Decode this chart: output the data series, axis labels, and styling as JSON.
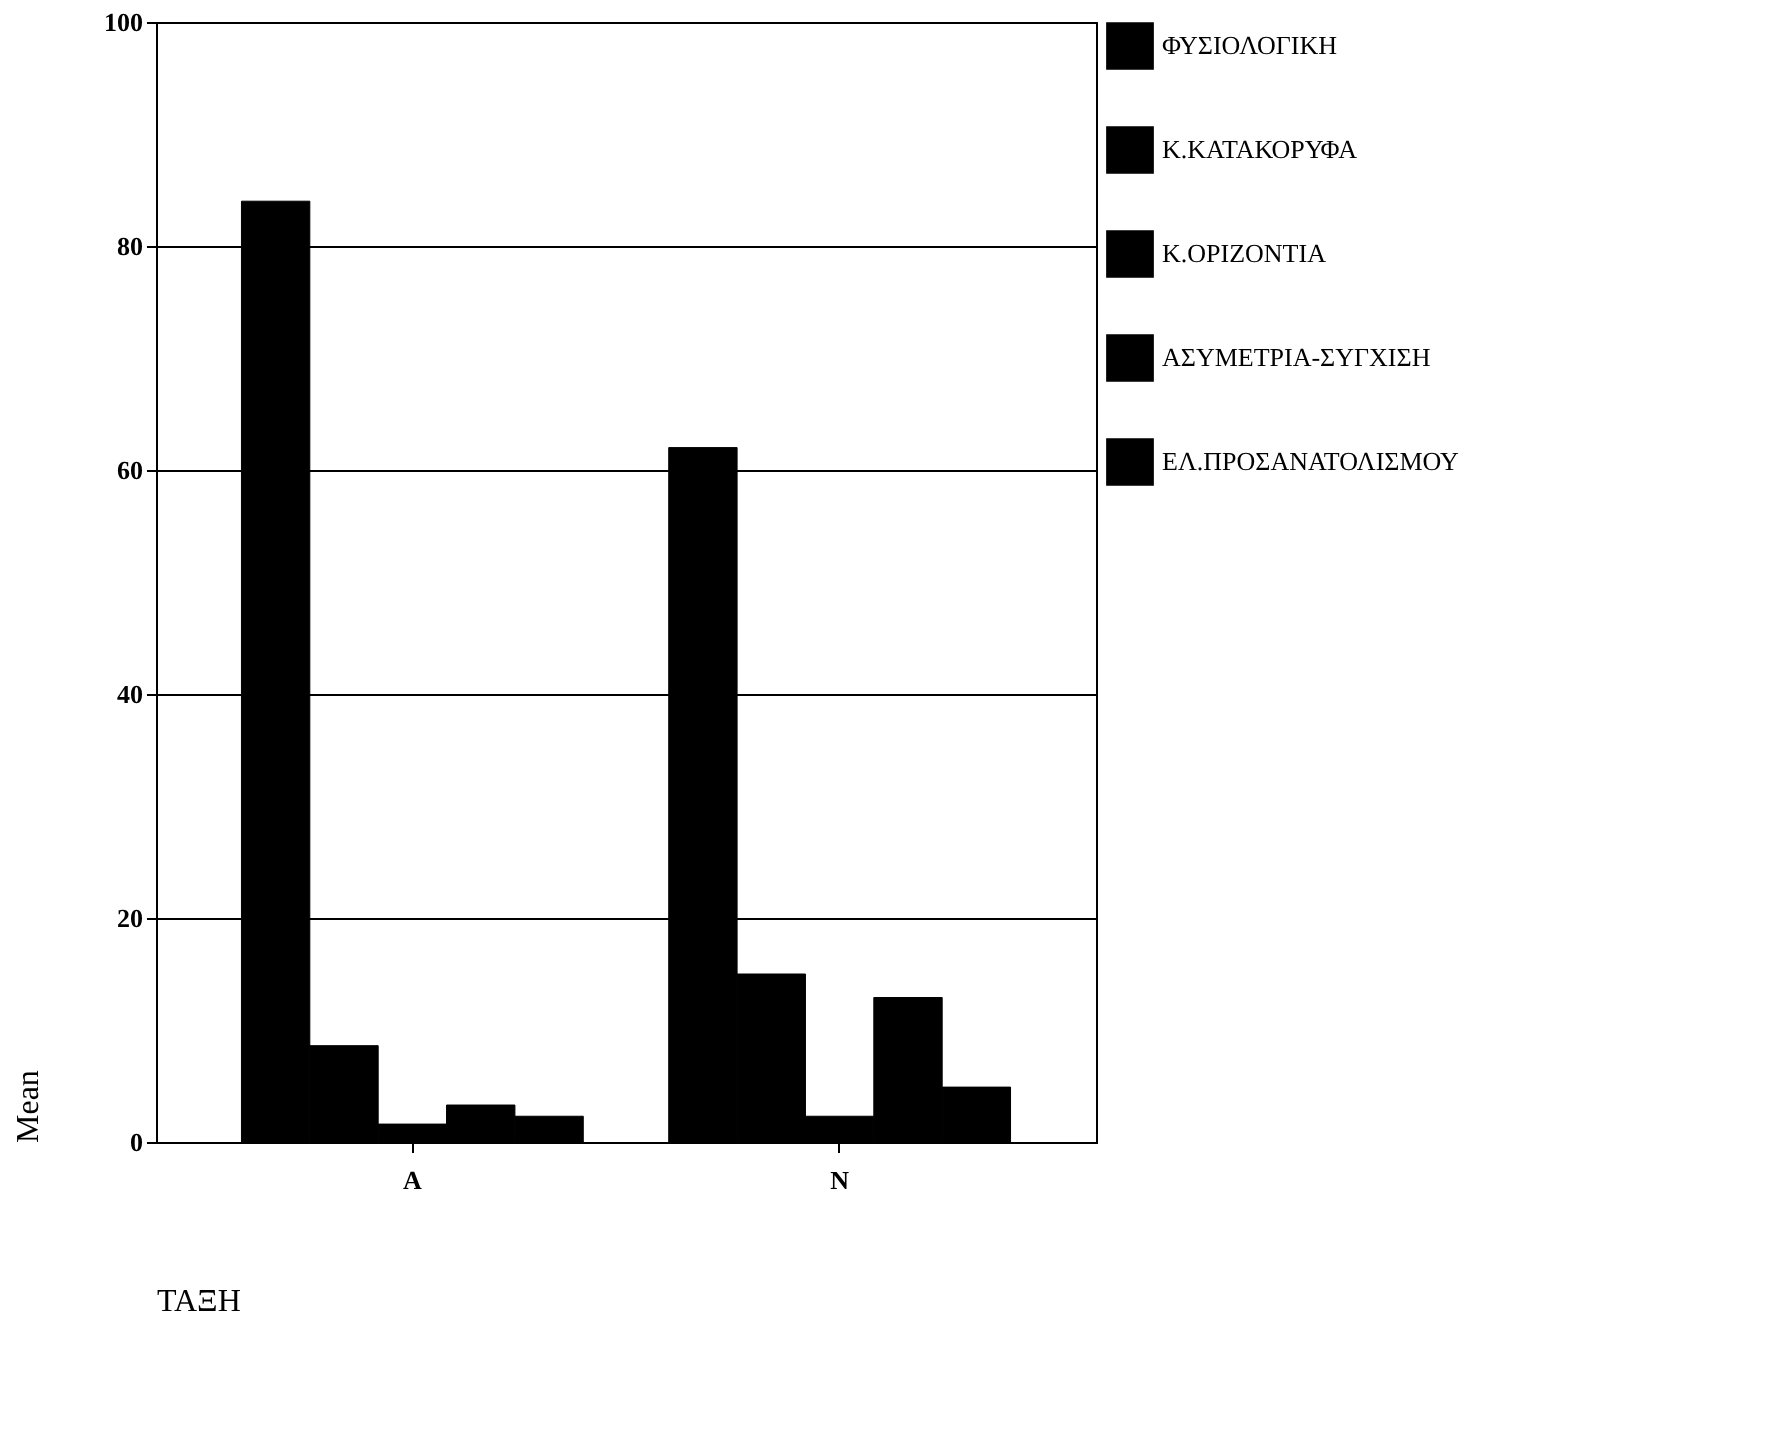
{
  "chart_data": {
    "type": "bar",
    "xlabel": "ΤΑΞΗ",
    "ylabel": "Mean",
    "categories": [
      "A",
      "N"
    ],
    "series": [
      {
        "name": "ΦΥΣΙΟΛΟΓΙΚΗ",
        "color": "#000000",
        "values": [
          84,
          62
        ]
      },
      {
        "name": "Κ.ΚΑΤΑΚΟΡΥΦΑ",
        "color": "#000000",
        "values": [
          8.6,
          15
        ]
      },
      {
        "name": "Κ.ΟΡΙΖΟΝΤΙΑ",
        "color": "#000000",
        "values": [
          1.6,
          2.3
        ]
      },
      {
        "name": "ΑΣΥΜΕΤΡΙΑ-ΣΥΓΧΙΣΗ",
        "color": "#000000",
        "values": [
          3.3,
          12.9
        ]
      },
      {
        "name": "ΕΛ.ΠΡΟΣΑΝΑΤΟΛΙΣΜΟΥ",
        "color": "#000000",
        "values": [
          2.3,
          4.9
        ]
      }
    ],
    "ylim": [
      0,
      100
    ],
    "yticks": [
      0,
      20,
      40,
      60,
      80,
      100
    ],
    "grid": "y",
    "legend": "right"
  }
}
